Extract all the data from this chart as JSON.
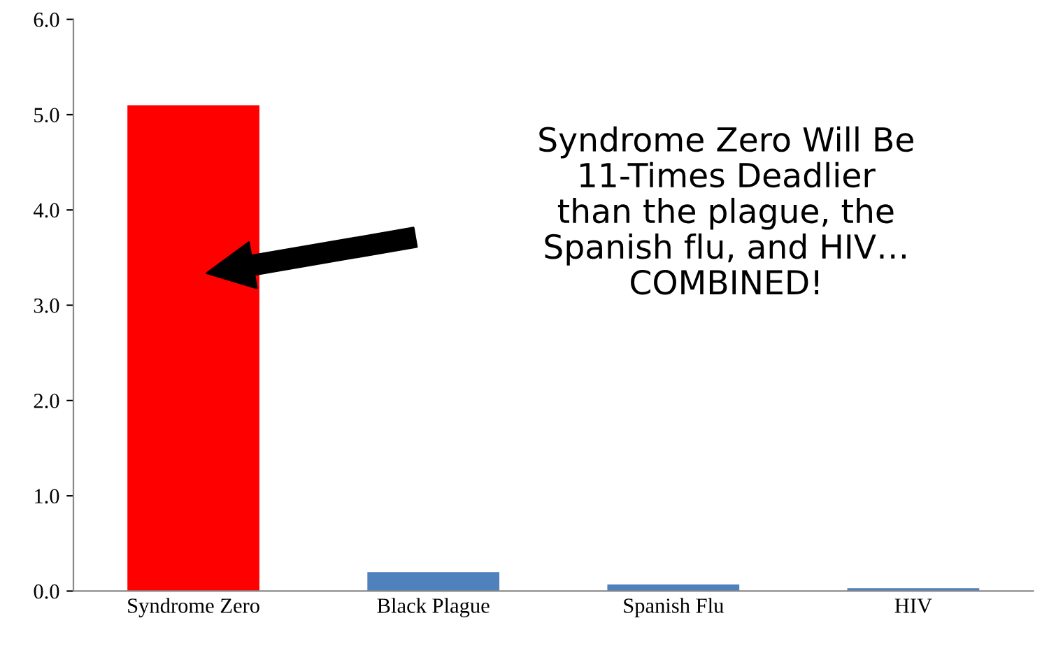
{
  "chart_data": {
    "type": "bar",
    "categories": [
      "Syndrome Zero",
      "Black Plague",
      "Spanish Flu",
      "HIV"
    ],
    "values": [
      5.1,
      0.2,
      0.07,
      0.03
    ],
    "colors": [
      "#ff0000",
      "#4f81bd",
      "#4f81bd",
      "#4f81bd"
    ],
    "ylim": [
      0,
      6
    ],
    "yticks": [
      {
        "value": 0,
        "label": "0.0"
      },
      {
        "value": 1,
        "label": "1.0"
      },
      {
        "value": 2,
        "label": "2.0"
      },
      {
        "value": 3,
        "label": "3.0"
      },
      {
        "value": 4,
        "label": "4.0"
      },
      {
        "value": 5,
        "label": "5.0"
      },
      {
        "value": 6,
        "label": "6.0"
      }
    ],
    "grid": false,
    "annotations": [
      "Syndrome Zero Will Be\n11-Times Deadlier\nthan the plague, the\nSpanish flu, and HIV…\nCOMBINED!"
    ]
  }
}
